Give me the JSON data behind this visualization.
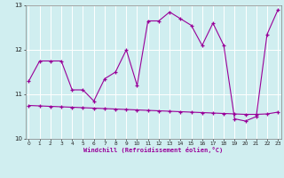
{
  "xlabel": "Windchill (Refroidissement éolien,°C)",
  "background_color": "#d0eef0",
  "line_color": "#990099",
  "x_hours": [
    0,
    1,
    2,
    3,
    4,
    5,
    6,
    7,
    8,
    9,
    10,
    11,
    12,
    13,
    14,
    15,
    16,
    17,
    18,
    19,
    20,
    21,
    22,
    23
  ],
  "series1_y": [
    11.3,
    11.75,
    11.75,
    11.75,
    11.1,
    11.1,
    10.85,
    11.35,
    11.5,
    12.0,
    11.2,
    12.65,
    12.65,
    12.85,
    12.7,
    12.55,
    12.1,
    12.6,
    12.1,
    10.45,
    10.4,
    10.5,
    12.35,
    12.9
  ],
  "series2_y": [
    10.75,
    10.74,
    10.73,
    10.72,
    10.71,
    10.7,
    10.69,
    10.68,
    10.67,
    10.66,
    10.65,
    10.64,
    10.63,
    10.62,
    10.61,
    10.6,
    10.59,
    10.58,
    10.57,
    10.56,
    10.55,
    10.55,
    10.56,
    10.6
  ],
  "ylim": [
    10.0,
    13.0
  ],
  "xlim": [
    -0.3,
    23.3
  ],
  "ytick_values": [
    10,
    11,
    12,
    13
  ],
  "xtick_values": [
    0,
    1,
    2,
    3,
    4,
    5,
    6,
    7,
    8,
    9,
    10,
    11,
    12,
    13,
    14,
    15,
    16,
    17,
    18,
    19,
    20,
    21,
    22,
    23
  ],
  "grid_color": "#b0d8da",
  "spine_color": "#808080"
}
